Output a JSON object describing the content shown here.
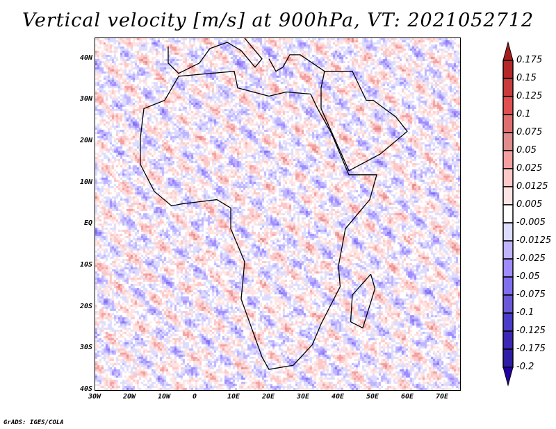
{
  "title": "Vertical velocity [m/s] at 900hPa, VT: 2021052712",
  "footer": "GrADS: IGES/COLA",
  "chart_data": {
    "type": "heatmap",
    "title": "Vertical velocity [m/s] at 900hPa, VT: 2021052712",
    "xlim": [
      -30,
      75
    ],
    "ylim": [
      -40,
      45
    ],
    "x_ticks": [
      {
        "v": -30,
        "label": "30W"
      },
      {
        "v": -20,
        "label": "20W"
      },
      {
        "v": -10,
        "label": "10W"
      },
      {
        "v": 0,
        "label": "0"
      },
      {
        "v": 10,
        "label": "10E"
      },
      {
        "v": 20,
        "label": "20E"
      },
      {
        "v": 30,
        "label": "30E"
      },
      {
        "v": 40,
        "label": "40E"
      },
      {
        "v": 50,
        "label": "50E"
      },
      {
        "v": 60,
        "label": "60E"
      },
      {
        "v": 70,
        "label": "70E"
      }
    ],
    "y_ticks": [
      {
        "v": 40,
        "label": "40N"
      },
      {
        "v": 30,
        "label": "30N"
      },
      {
        "v": 20,
        "label": "20N"
      },
      {
        "v": 10,
        "label": "10N"
      },
      {
        "v": 0,
        "label": "EQ"
      },
      {
        "v": -10,
        "label": "10S"
      },
      {
        "v": -20,
        "label": "20S"
      },
      {
        "v": -30,
        "label": "30S"
      },
      {
        "v": -40,
        "label": "40S"
      }
    ],
    "colorbar": {
      "levels": [
        "0.175",
        "0.15",
        "0.125",
        "0.1",
        "0.075",
        "0.05",
        "0.025",
        "0.0125",
        "0.005",
        "-0.005",
        "-0.0125",
        "-0.025",
        "-0.05",
        "-0.075",
        "-0.1",
        "-0.125",
        "-0.175",
        "-0.2"
      ],
      "colors": [
        "#a51e1e",
        "#b42828",
        "#c83c3c",
        "#e05050",
        "#e06e6e",
        "#e08c8c",
        "#f4a0a0",
        "#fcc8c8",
        "#ffe4e4",
        "#ffffff",
        "#dcdcff",
        "#c0b4ff",
        "#a08cff",
        "#8070f0",
        "#6a5ad8",
        "#4a3cc8",
        "#3c28b4",
        "#2d1ea5",
        "#2300a0"
      ]
    }
  }
}
